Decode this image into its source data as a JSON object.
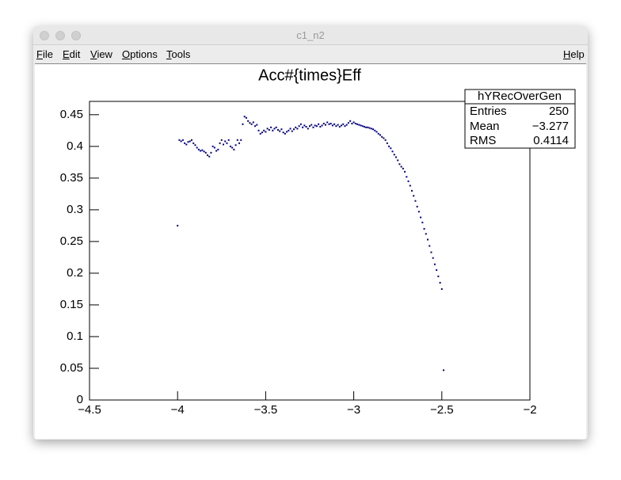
{
  "window": {
    "title": "c1_n2",
    "menu": [
      "File",
      "Edit",
      "View",
      "Options",
      "Tools"
    ],
    "help": "Help"
  },
  "chart_data": {
    "type": "scatter",
    "title": "Acc#{times}Eff",
    "color": "#000080",
    "xlim": [
      -4.5,
      -2
    ],
    "ylim": [
      0,
      0.471
    ],
    "xticks": [
      {
        "value": -4.5,
        "label": "−4.5"
      },
      {
        "value": -4,
        "label": "−4"
      },
      {
        "value": -3.5,
        "label": "−3.5"
      },
      {
        "value": -3,
        "label": "−3"
      },
      {
        "value": -2.5,
        "label": "−2.5"
      },
      {
        "value": -2,
        "label": "−2"
      }
    ],
    "yticks": [
      0,
      0.05,
      0.1,
      0.15,
      0.2,
      0.25,
      0.3,
      0.35,
      0.4,
      0.45
    ],
    "x": [
      -4.0,
      -3.99,
      -3.98,
      -3.97,
      -3.96,
      -3.95,
      -3.94,
      -3.93,
      -3.92,
      -3.91,
      -3.9,
      -3.89,
      -3.88,
      -3.87,
      -3.86,
      -3.85,
      -3.84,
      -3.83,
      -3.82,
      -3.81,
      -3.8,
      -3.79,
      -3.78,
      -3.77,
      -3.76,
      -3.75,
      -3.74,
      -3.73,
      -3.72,
      -3.71,
      -3.7,
      -3.69,
      -3.68,
      -3.67,
      -3.66,
      -3.65,
      -3.64,
      -3.63,
      -3.62,
      -3.61,
      -3.6,
      -3.59,
      -3.58,
      -3.57,
      -3.56,
      -3.55,
      -3.54,
      -3.53,
      -3.52,
      -3.51,
      -3.5,
      -3.49,
      -3.48,
      -3.47,
      -3.46,
      -3.45,
      -3.44,
      -3.43,
      -3.42,
      -3.41,
      -3.4,
      -3.39,
      -3.38,
      -3.37,
      -3.36,
      -3.35,
      -3.34,
      -3.33,
      -3.32,
      -3.31,
      -3.3,
      -3.29,
      -3.28,
      -3.27,
      -3.26,
      -3.25,
      -3.24,
      -3.23,
      -3.22,
      -3.21,
      -3.2,
      -3.19,
      -3.18,
      -3.17,
      -3.16,
      -3.15,
      -3.14,
      -3.13,
      -3.12,
      -3.11,
      -3.1,
      -3.09,
      -3.08,
      -3.07,
      -3.06,
      -3.05,
      -3.04,
      -3.03,
      -3.02,
      -3.01,
      -3.0,
      -2.99,
      -2.98,
      -2.97,
      -2.96,
      -2.95,
      -2.94,
      -2.93,
      -2.92,
      -2.91,
      -2.9,
      -2.89,
      -2.88,
      -2.87,
      -2.86,
      -2.85,
      -2.84,
      -2.83,
      -2.82,
      -2.81,
      -2.8,
      -2.79,
      -2.78,
      -2.77,
      -2.76,
      -2.75,
      -2.74,
      -2.73,
      -2.72,
      -2.71,
      -2.7,
      -2.69,
      -2.68,
      -2.67,
      -2.66,
      -2.65,
      -2.64,
      -2.63,
      -2.62,
      -2.61,
      -2.6,
      -2.59,
      -2.58,
      -2.57,
      -2.56,
      -2.55,
      -2.54,
      -2.53,
      -2.52,
      -2.51,
      -2.5,
      -2.49
    ],
    "values": [
      0.275,
      0.41,
      0.408,
      0.41,
      0.405,
      0.403,
      0.407,
      0.408,
      0.41,
      0.405,
      0.402,
      0.398,
      0.395,
      0.393,
      0.394,
      0.392,
      0.39,
      0.386,
      0.384,
      0.39,
      0.4,
      0.398,
      0.393,
      0.395,
      0.405,
      0.41,
      0.403,
      0.408,
      0.405,
      0.41,
      0.4,
      0.398,
      0.395,
      0.402,
      0.41,
      0.405,
      0.41,
      0.435,
      0.447,
      0.445,
      0.44,
      0.437,
      0.435,
      0.438,
      0.432,
      0.434,
      0.425,
      0.42,
      0.422,
      0.425,
      0.423,
      0.428,
      0.426,
      0.43,
      0.425,
      0.428,
      0.43,
      0.426,
      0.424,
      0.427,
      0.422,
      0.42,
      0.423,
      0.425,
      0.428,
      0.424,
      0.427,
      0.43,
      0.428,
      0.432,
      0.435,
      0.43,
      0.433,
      0.431,
      0.428,
      0.432,
      0.434,
      0.43,
      0.433,
      0.432,
      0.435,
      0.431,
      0.433,
      0.436,
      0.434,
      0.438,
      0.435,
      0.436,
      0.433,
      0.435,
      0.432,
      0.434,
      0.431,
      0.433,
      0.435,
      0.432,
      0.434,
      0.437,
      0.44,
      0.436,
      0.438,
      0.436,
      0.435,
      0.434,
      0.433,
      0.432,
      0.431,
      0.43,
      0.43,
      0.429,
      0.428,
      0.427,
      0.425,
      0.423,
      0.42,
      0.418,
      0.415,
      0.413,
      0.41,
      0.405,
      0.4,
      0.397,
      0.392,
      0.387,
      0.383,
      0.378,
      0.372,
      0.368,
      0.365,
      0.36,
      0.352,
      0.345,
      0.338,
      0.33,
      0.322,
      0.314,
      0.305,
      0.297,
      0.288,
      0.28,
      0.27,
      0.262,
      0.253,
      0.243,
      0.233,
      0.224,
      0.214,
      0.205,
      0.195,
      0.185,
      0.175,
      0.047
    ],
    "stats": {
      "name": "hYRecOverGen",
      "rows": [
        [
          "Entries",
          "250"
        ],
        [
          "Mean",
          "−3.277"
        ],
        [
          "RMS",
          "0.4114"
        ]
      ]
    }
  }
}
